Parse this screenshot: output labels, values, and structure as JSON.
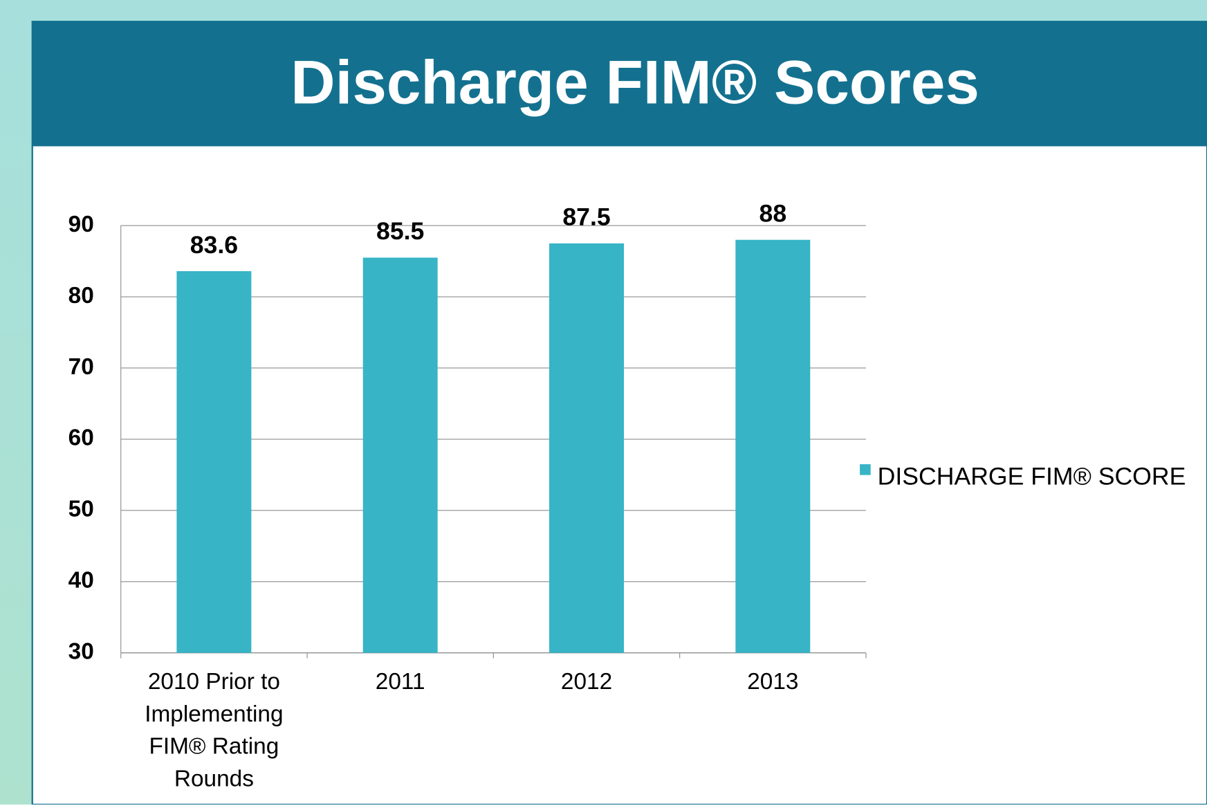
{
  "chart_data": {
    "type": "bar",
    "title": "Discharge FIM® Scores",
    "categories": [
      "2010 Prior to Implementing FIM® Rating Rounds",
      "2011",
      "2012",
      "2013"
    ],
    "series": [
      {
        "name": "DISCHARGE FIM® SCORE",
        "color": "#37b4c6",
        "values": [
          83.6,
          85.5,
          87.5,
          88
        ]
      }
    ],
    "ylim": [
      30,
      90
    ],
    "yticks": [
      30,
      40,
      50,
      60,
      70,
      80,
      90
    ],
    "grid": true,
    "legend": "right"
  }
}
